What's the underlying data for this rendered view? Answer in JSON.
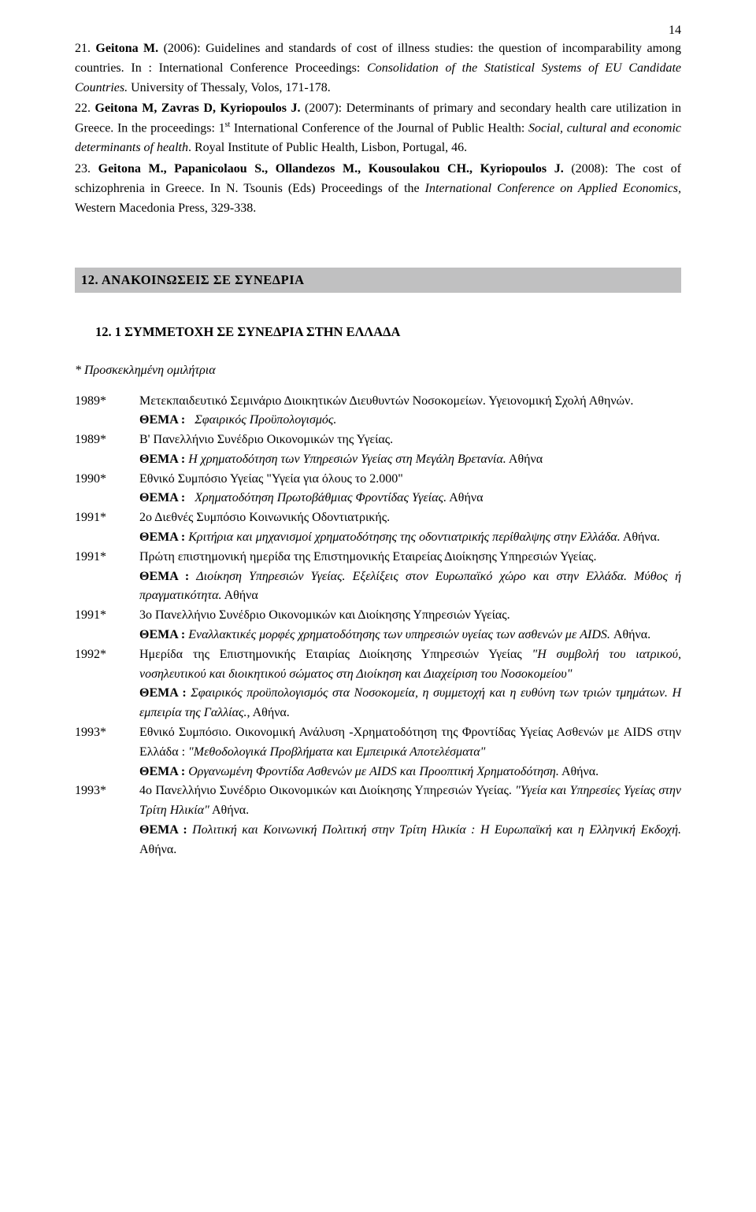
{
  "pageNumber": "14",
  "sectionHeader": "12.  ΑΝΑΚΟΙΝΩΣΕΙΣ  ΣΕ  ΣΥΝΕΔΡΙΑ",
  "subHeader": "12. 1  ΣΥΜΜΕΤΟΧΗ ΣΕ  ΣΥΝΕΔΡΙΑ ΣΤΗΝ ΕΛΛΑΔΑ",
  "introItalic": "* Προσκεκλημένη ομιλήτρια",
  "themeLabel": "ΘΕΜΑ : ",
  "refs": {
    "r21_num": "21. ",
    "r21_bold": "Geitona M.",
    "r21_a": " (2006): Guidelines and standards of cost of illness studies: the question of incomparability among countries. In : International Conference Proceedings: ",
    "r21_i": "Consolidation of the Statistical Systems of EU Candidate Countries.",
    "r21_b": " University of Thessaly, Volos, 171-178.",
    "r22_num": "22. ",
    "r22_bold": "Geitona M, Zavras D, Kyriopoulos J.",
    "r22_a": " (2007): Determinants of primary and secondary health care utilization in Greece. In the proceedings: 1",
    "r22_sup": "st",
    "r22_b": " International Conference of the Journal of Public Health: ",
    "r22_i": "Social, cultural and economic determinants of health",
    "r22_c": ". Royal Institute of Public Health, Lisbon, Portugal, 46.",
    "r23_num": "23. ",
    "r23_bold": "Geitona M., Papanicolaou S., Ollandezos M., Kousoulakou CH., Kyriopoulos J.",
    "r23_a": " (2008): The cost of schizophrenia in Greece. In N. Tsounis (Eds) Proceedings of the ",
    "r23_i": "International Conference on Applied Economics,",
    "r23_b": " Western Macedonia Press,  329-338."
  },
  "rows": {
    "y1989a": "1989*",
    "d1989a": "Μετεκπαιδευτικό Σεμινάριο Διοικητικών Διευθυντών Νοσοκομείων. Υγειονομική Σχολή Αθηνών.",
    "t1989a": "Σφαιρικός Προϋπολογισμός.",
    "y1989b": "1989*",
    "d1989b": "B' Πανελλήνιο Συνέδριο Οικονομικών της Υγείας.",
    "t1989b_i": "Η χρηματοδότηση των Υπηρεσιών Υγείας στη Μεγάλη Βρετανία.",
    "t1989b_r": "   Αθήνα",
    "y1990": "1990*",
    "d1990": "Εθνικό Συμπόσιο Υγείας \"Υγεία για όλους το 2.000\"",
    "t1990_i": "Χρηματοδότηση Πρωτοβάθμιας Φροντίδας Υγείας.",
    "t1990_r": "   Αθήνα",
    "y1991a": "1991*",
    "d1991a": "2ο Διεθνές Συμπόσιο Κοινωνικής Οδοντιατρικής.",
    "t1991a_i": "Κριτήρια και μηχανισμοί χρηματοδότησης της οδοντιατρικής περίθαλψης στην Ελλάδα.",
    "t1991a_r": " Αθήνα.",
    "y1991b": "1991*",
    "d1991b": "Πρώτη επιστημονική ημερίδα της Επιστημονικής Εταιρείας Διοίκησης Υπηρεσιών Υγείας.",
    "t1991b_i1": "Διοίκηση Υπηρεσιών Υγείας. Εξελίξεις στον Ευρωπαϊκό χώρο και στην Ελλάδα. Μύθος ή πραγματικότητα.",
    "t1991b_r": "   Αθήνα",
    "y1991c": "1991*",
    "d1991c": "3ο Πανελλήνιο Συνέδριο Οικονομικών και Διοίκησης Υπηρεσιών Υγείας.",
    "t1991c_i": "Εναλλακτικές μορφές χρηματοδότησης των υπηρεσιών υγείας των ασθενών με AIDS.",
    "t1991c_r": " Αθήνα.",
    "y1992": "1992*",
    "d1992_a": "Ημερίδα της Επιστημονικής Εταιρίας Διοίκησης Υπηρεσιών Υγείας ",
    "d1992_i": "\"Η συμβολή του ιατρικού, νοσηλευτικού και διοικητικού σώματος  στη Διοίκηση και Διαχείριση του Νοσοκομείου\"",
    "t1992_i": "Σφαιρικός προϋπολογισμός στα Νοσοκομεία, η συμμετοχή και η ευθύνη των τριών τμημάτων. Η εμπειρία της Γαλλίας.",
    "t1992_r": ", Αθήνα.",
    "y1993a": "1993*",
    "d1993a_a": "Εθνικό Συμπόσιο. Οικονομική Ανάλυση -Χρηματοδότηση της Φροντίδας Υγείας Ασθενών με AIDS στην Ελλάδα : ",
    "d1993a_i": "\"Μεθοδολογικά Προβλήματα και Εμπειρικά Αποτελέσματα\"",
    "t1993a_i": "Οργανωμένη Φροντίδα Ασθενών με AIDS και Προοπτική Χρηματοδότηση.",
    "t1993a_r": "    Αθήνα.",
    "y1993b": "1993*",
    "d1993b_a": "4ο Πανελλήνιο Συνέδριο Οικονομικών και Διοίκησης Υπηρεσιών Υγείας. ",
    "d1993b_i": "\"Υγεία και Υπηρεσίες Υγείας στην Τρίτη Ηλικία\"",
    "d1993b_r": " Αθήνα.",
    "t1993b_i": "Πολιτική και Κοινωνική Πολιτική στην Τρίτη Ηλικία : Η Ευρωπαϊκή και η Ελληνική Εκδοχή.",
    "t1993b_r": " Αθήνα."
  }
}
